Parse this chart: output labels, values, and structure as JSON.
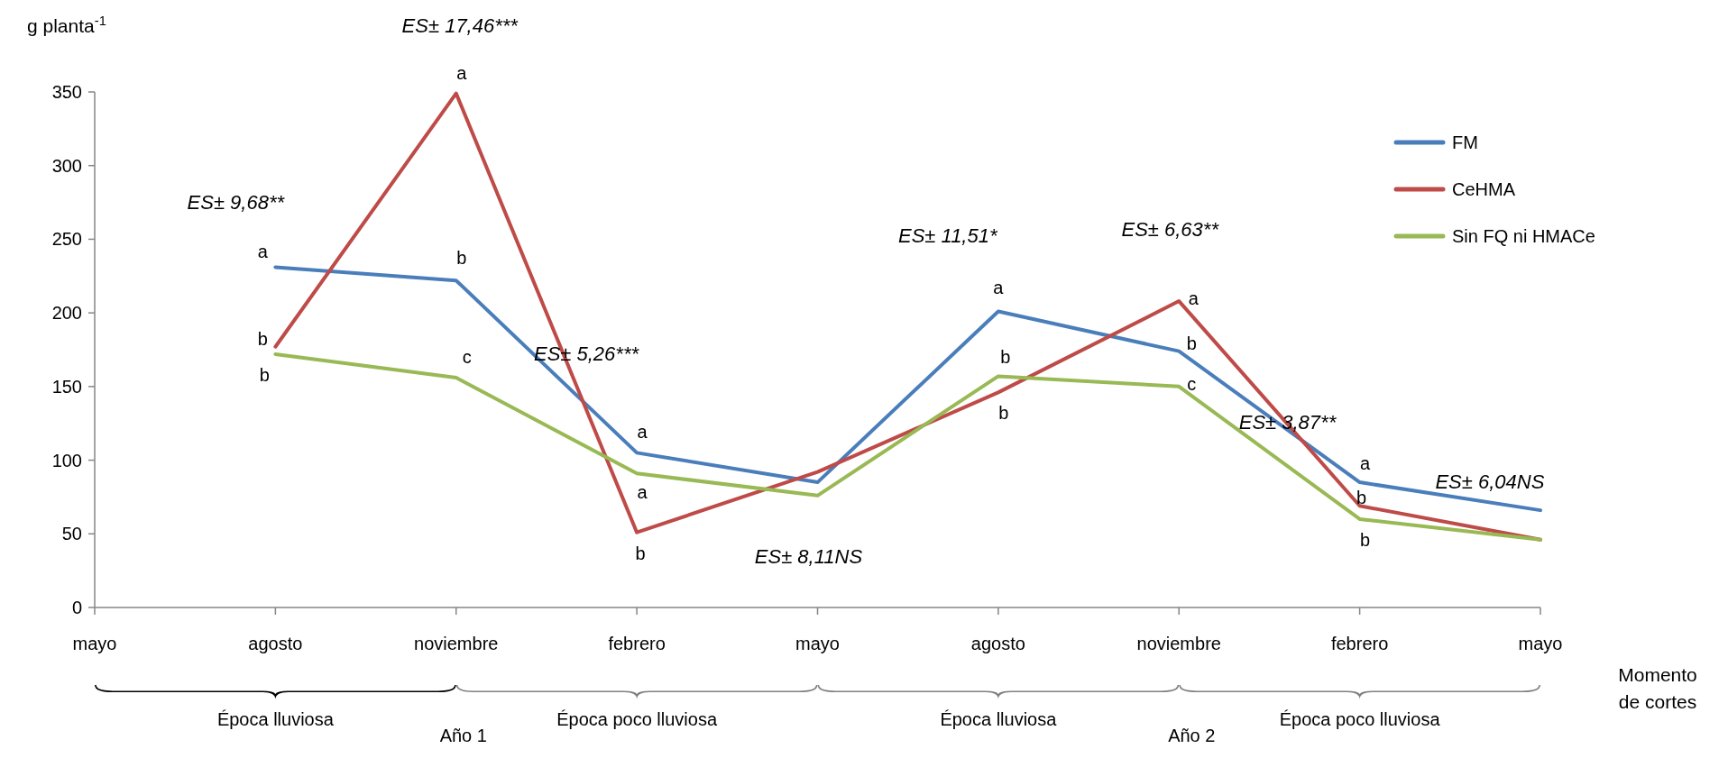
{
  "chart_data": {
    "type": "line",
    "ylabel": "g planta$^{-1}$",
    "xlabel": "Momento de cortes",
    "categories": [
      "mayo",
      "agosto",
      "noviembre",
      "febrero",
      "mayo",
      "agosto",
      "noviembre",
      "febrero",
      "mayo"
    ],
    "ylim": [
      0,
      350
    ],
    "yticks": [
      0,
      50,
      100,
      150,
      200,
      250,
      300,
      350
    ],
    "grid": false,
    "legend": "top right",
    "marker": "none",
    "line_style": "solid",
    "series": [
      {
        "name": "FM",
        "color": "#4a7ebb",
        "values": [
          null,
          231,
          222,
          105,
          85,
          201,
          174,
          85,
          66
        ],
        "value_labels": [
          null,
          "a",
          "b",
          "a",
          null,
          "a",
          "b",
          "a",
          null
        ]
      },
      {
        "name": "CeHMA",
        "color": "#be4b48",
        "values": [
          null,
          177,
          349,
          51,
          92,
          146,
          208,
          69,
          46
        ],
        "value_labels": [
          null,
          "b",
          "a",
          "b",
          null,
          "b",
          "a",
          "b",
          null
        ]
      },
      {
        "name": "Sin FQ ni HMACe",
        "color": "#98b954",
        "values": [
          null,
          172,
          156,
          91,
          76,
          157,
          150,
          60,
          46
        ],
        "value_labels": [
          null,
          "b",
          "c",
          "a",
          null,
          "b",
          "c",
          "b",
          null
        ]
      }
    ],
    "annotations": [
      "ES± 9,68**",
      "ES± 17,46***",
      "ES± 5,26***",
      "ES± 8,11NS",
      "ES± 11,51*",
      "ES± 6,63**",
      "ES± 3,87**",
      "ES± 6,04NS",
      "Época lluviosa",
      "Época poco lluviosa",
      "Época lluviosa",
      "Época poco lluviosa",
      "Año 1",
      "Año 2"
    ]
  }
}
